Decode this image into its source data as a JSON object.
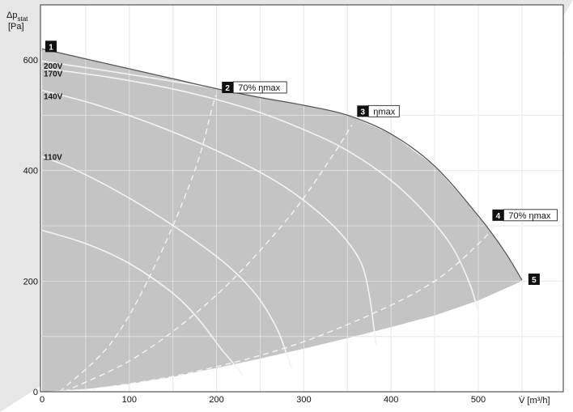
{
  "chart_data": {
    "type": "line",
    "title": "",
    "xlabel": "V̇ [m³/h]",
    "ylabel": [
      "Δp",
      "stat",
      "[Pa]"
    ],
    "xlim": [
      0,
      600
    ],
    "ylim": [
      0,
      600
    ],
    "x_ticks": [
      0,
      100,
      200,
      300,
      400,
      500
    ],
    "y_ticks": [
      0,
      200,
      400,
      600
    ],
    "x_grid": [
      50,
      100,
      150,
      200,
      250,
      300,
      350,
      400,
      450,
      500,
      550
    ],
    "y_grid": [
      100,
      200,
      300,
      400,
      500
    ],
    "grid": true,
    "colors": {
      "fill": "#c4c4c4",
      "envelope": "#555555",
      "curves": "#f4f4f4",
      "grid": "#ffffff",
      "frame": "#333333",
      "marker_box": "#111111",
      "background_band": "#e6e6e6"
    },
    "envelope": {
      "top": [
        [
          0,
          620
        ],
        [
          50,
          602
        ],
        [
          100,
          584
        ],
        [
          150,
          566
        ],
        [
          200,
          548
        ],
        [
          250,
          532
        ],
        [
          300,
          518
        ],
        [
          350,
          500
        ],
        [
          400,
          466
        ],
        [
          450,
          408
        ],
        [
          500,
          318
        ],
        [
          530,
          254
        ],
        [
          550,
          202
        ]
      ],
      "bottom": [
        [
          550,
          200
        ],
        [
          500,
          165
        ],
        [
          450,
          138
        ],
        [
          400,
          117
        ],
        [
          350,
          97
        ],
        [
          300,
          78
        ],
        [
          250,
          60
        ],
        [
          200,
          43
        ],
        [
          150,
          27
        ],
        [
          100,
          14
        ],
        [
          50,
          5
        ],
        [
          0,
          0
        ]
      ]
    },
    "series": [
      {
        "name": "200V",
        "values": [
          [
            0,
            598
          ],
          [
            100,
            574
          ],
          [
            200,
            548
          ],
          [
            300,
            518
          ],
          [
            350,
            500
          ],
          [
            400,
            466
          ],
          [
            450,
            408
          ],
          [
            500,
            318
          ],
          [
            530,
            254
          ],
          [
            550,
            202
          ]
        ]
      },
      {
        "name": "170V",
        "values": [
          [
            0,
            585
          ],
          [
            80,
            568
          ],
          [
            160,
            544
          ],
          [
            240,
            510
          ],
          [
            300,
            474
          ],
          [
            350,
            436
          ],
          [
            400,
            382
          ],
          [
            440,
            322
          ],
          [
            470,
            262
          ],
          [
            490,
            196
          ],
          [
            500,
            144
          ]
        ]
      },
      {
        "name": "140V",
        "values": [
          [
            0,
            545
          ],
          [
            60,
            520
          ],
          [
            130,
            482
          ],
          [
            200,
            436
          ],
          [
            260,
            388
          ],
          [
            300,
            346
          ],
          [
            340,
            290
          ],
          [
            365,
            235
          ],
          [
            375,
            175
          ],
          [
            380,
            120
          ],
          [
            383,
            84
          ]
        ]
      },
      {
        "name": "110V",
        "values": [
          [
            0,
            425
          ],
          [
            40,
            400
          ],
          [
            100,
            350
          ],
          [
            160,
            290
          ],
          [
            210,
            232
          ],
          [
            245,
            176
          ],
          [
            268,
            118
          ],
          [
            280,
            70
          ],
          [
            286,
            42
          ]
        ]
      },
      {
        "name": "",
        "values": [
          [
            0,
            292
          ],
          [
            50,
            268
          ],
          [
            100,
            232
          ],
          [
            150,
            178
          ],
          [
            180,
            130
          ],
          [
            205,
            78
          ],
          [
            220,
            50
          ],
          [
            230,
            30
          ]
        ]
      }
    ],
    "efficiency_lines": [
      {
        "label": "70% ηmax",
        "values": [
          [
            20,
            0
          ],
          [
            80,
            90
          ],
          [
            130,
            230
          ],
          [
            175,
            400
          ],
          [
            196,
            520
          ],
          [
            200,
            536
          ]
        ]
      },
      {
        "label": "ηmax",
        "values": [
          [
            25,
            0
          ],
          [
            110,
            65
          ],
          [
            200,
            175
          ],
          [
            280,
            310
          ],
          [
            330,
            420
          ],
          [
            355,
            482
          ]
        ]
      },
      {
        "label": "70% ηmax",
        "values": [
          [
            35,
            0
          ],
          [
            150,
            28
          ],
          [
            270,
            75
          ],
          [
            370,
            135
          ],
          [
            450,
            200
          ],
          [
            505,
            275
          ],
          [
            520,
            305
          ]
        ]
      }
    ],
    "markers": [
      {
        "num": "1",
        "text": "",
        "x": 0,
        "y": 620
      },
      {
        "num": "2",
        "text": "70% ηmax",
        "x": 195,
        "y": 543
      },
      {
        "num": "3",
        "text": "ηmax",
        "x": 350,
        "y": 500
      },
      {
        "num": "4",
        "text": "70% ηmax",
        "x": 505,
        "y": 312
      },
      {
        "num": "5",
        "text": "",
        "x": 550,
        "y": 202
      }
    ],
    "curve_labels": [
      "200V",
      "170V",
      "140V",
      "110V"
    ]
  }
}
